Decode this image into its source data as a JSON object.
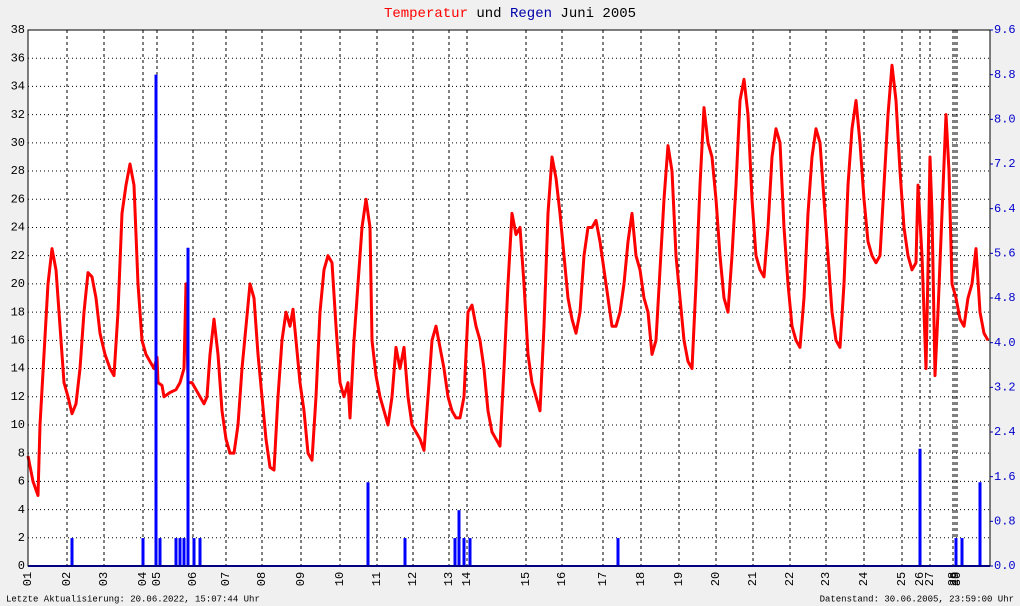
{
  "chart_data": {
    "type": "line",
    "title_connector": "und",
    "title_suffix": "Juni 2005",
    "footer_left": "Letzte Aktualisierung: 20.06.2022, 15:07:44 Uhr",
    "footer_right": "Datenstand: 30.06.2005, 23:59:00 Uhr",
    "xlim": [
      28,
      990
    ],
    "xticks": [
      {
        "value": 28,
        "label": "01"
      },
      {
        "value": 67,
        "label": "02"
      },
      {
        "value": 104,
        "label": "03"
      },
      {
        "value": 143,
        "label": "04"
      },
      {
        "value": 157,
        "label": "05"
      },
      {
        "value": 193,
        "label": "06"
      },
      {
        "value": 226,
        "label": "07"
      },
      {
        "value": 262,
        "label": "08"
      },
      {
        "value": 301,
        "label": "09"
      },
      {
        "value": 340,
        "label": "10"
      },
      {
        "value": 377,
        "label": "11"
      },
      {
        "value": 413,
        "label": "12"
      },
      {
        "value": 449,
        "label": "13"
      },
      {
        "value": 467,
        "label": "14"
      },
      {
        "value": 526,
        "label": "15"
      },
      {
        "value": 562,
        "label": "16"
      },
      {
        "value": 603,
        "label": "17"
      },
      {
        "value": 641,
        "label": "18"
      },
      {
        "value": 679,
        "label": "19"
      },
      {
        "value": 716,
        "label": "20"
      },
      {
        "value": 753,
        "label": "21"
      },
      {
        "value": 790,
        "label": "22"
      },
      {
        "value": 826,
        "label": "23"
      },
      {
        "value": 864,
        "label": "24"
      },
      {
        "value": 902,
        "label": "25"
      },
      {
        "value": 920,
        "label": "26"
      },
      {
        "value": 930,
        "label": "27"
      },
      {
        "value": 953,
        "label": "28"
      },
      {
        "value": 955,
        "label": "29"
      },
      {
        "value": 957,
        "label": "30"
      }
    ],
    "ylim": [
      0,
      38
    ],
    "yticks": [
      0,
      2,
      4,
      6,
      8,
      10,
      12,
      14,
      16,
      18,
      20,
      22,
      24,
      26,
      28,
      30,
      32,
      34,
      36,
      38
    ],
    "y2lim": [
      0,
      9.6
    ],
    "y2ticks": [
      {
        "value": 0,
        "label": "0.0"
      },
      0.8,
      1.6,
      2.4,
      3.2,
      {
        "value": 4,
        "label": "4.0"
      },
      4.8,
      5.6,
      6.4,
      7.2,
      {
        "value": 8,
        "label": "8.0"
      },
      8.8,
      9.6
    ],
    "grid": true,
    "series": [
      {
        "name": "Temperatur",
        "color": "#ff0000",
        "x": [
          28,
          33,
          38,
          40,
          44,
          48,
          52,
          56,
          60,
          64,
          68,
          72,
          76,
          80,
          84,
          88,
          92,
          96,
          100,
          105,
          110,
          114,
          118,
          122,
          126,
          130,
          134,
          138,
          142,
          146,
          150,
          154,
          157,
          158,
          162,
          164,
          170,
          176,
          180,
          184,
          186,
          188,
          192,
          196,
          200,
          204,
          207,
          210,
          214,
          218,
          222,
          226,
          230,
          234,
          238,
          242,
          246,
          250,
          254,
          258,
          262,
          266,
          270,
          274,
          278,
          282,
          286,
          290,
          293,
          296,
          300,
          304,
          308,
          312,
          316,
          320,
          324,
          328,
          332,
          336,
          340,
          344,
          348,
          350,
          354,
          358,
          362,
          366,
          370,
          372,
          376,
          380,
          384,
          388,
          392,
          396,
          400,
          404,
          408,
          412,
          416,
          420,
          424,
          428,
          432,
          436,
          440,
          444,
          448,
          452,
          456,
          460,
          464,
          468,
          472,
          476,
          480,
          484,
          488,
          492,
          496,
          500,
          504,
          508,
          512,
          516,
          520,
          524,
          528,
          532,
          536,
          540,
          544,
          548,
          552,
          556,
          560,
          564,
          568,
          572,
          576,
          580,
          584,
          588,
          592,
          596,
          600,
          604,
          608,
          612,
          616,
          620,
          624,
          628,
          632,
          636,
          640,
          644,
          648,
          652,
          656,
          660,
          664,
          668,
          672,
          676,
          680,
          684,
          688,
          692,
          696,
          700,
          704,
          708,
          712,
          716,
          720,
          724,
          728,
          732,
          736,
          740,
          744,
          748,
          752,
          756,
          760,
          764,
          768,
          772,
          776,
          780,
          784,
          788,
          792,
          796,
          800,
          804,
          808,
          812,
          816,
          820,
          824,
          828,
          832,
          836,
          840,
          844,
          848,
          852,
          856,
          860,
          864,
          868,
          872,
          876,
          880,
          884,
          888,
          892,
          896,
          900,
          904,
          908,
          912,
          916,
          918,
          922,
          926,
          928,
          930,
          932,
          935,
          938,
          942,
          946,
          949,
          952,
          956,
          960,
          964,
          968,
          972,
          976,
          980,
          984,
          988
        ],
        "values": [
          7.8,
          6,
          5,
          10,
          15,
          20,
          22.5,
          21,
          17,
          13,
          12,
          10.8,
          11.5,
          14,
          18,
          20.8,
          20.5,
          19,
          16.5,
          15,
          14,
          13.5,
          18,
          25,
          27,
          28.5,
          27,
          20,
          16,
          15,
          14.5,
          14,
          14.8,
          13,
          12.8,
          12,
          12.3,
          12.5,
          13,
          14,
          20,
          13,
          13,
          12.5,
          12,
          11.5,
          12,
          15,
          17.5,
          15,
          11,
          9,
          8,
          8,
          10,
          14,
          17,
          20,
          19,
          15,
          12,
          9,
          7,
          6.8,
          12,
          16,
          18,
          17,
          18.2,
          16,
          13,
          11,
          8,
          7.5,
          12,
          18,
          21,
          22,
          21.5,
          17,
          13,
          12,
          13,
          10.5,
          16,
          20,
          24,
          26,
          24,
          16,
          13.5,
          12,
          11,
          10,
          12,
          15.5,
          14,
          15.5,
          12,
          10,
          9.5,
          9,
          8.2,
          12,
          16,
          17,
          15.5,
          14,
          12,
          11,
          10.5,
          10.5,
          12,
          18,
          18.5,
          17,
          16,
          14,
          11,
          9.5,
          9,
          8.5,
          14,
          20,
          25,
          23.5,
          24,
          20,
          15,
          13,
          12,
          11,
          17,
          25,
          29,
          27.5,
          25,
          22,
          19,
          17.5,
          16.5,
          18,
          22,
          24,
          24,
          24.5,
          23,
          21,
          19,
          17,
          17,
          18,
          20,
          23,
          25,
          22,
          21,
          19,
          18,
          15,
          16,
          21,
          26,
          29.8,
          28,
          22,
          19,
          16,
          14.5,
          14,
          20,
          27,
          32.5,
          30,
          29,
          26,
          22,
          19,
          18,
          22,
          27,
          33,
          34.5,
          32,
          26,
          22,
          21,
          20.5,
          24,
          29,
          31,
          30,
          24,
          20,
          17,
          16,
          15.5,
          19,
          25,
          29,
          31,
          30,
          26,
          22,
          18,
          16,
          15.5,
          20,
          27,
          31,
          33,
          30,
          26,
          23,
          22,
          21.5,
          22,
          27,
          32,
          35.5,
          33,
          28,
          24,
          22,
          21,
          21.5,
          27,
          22,
          14,
          21,
          29,
          25,
          13.5,
          18,
          25,
          32,
          28,
          20,
          19,
          17.5,
          17,
          19,
          20,
          22.5,
          18,
          16.5,
          16
        ]
      },
      {
        "name": "Regen",
        "color": "#0000ff",
        "axis": "y2",
        "type": "bar",
        "x": [
          72,
          143,
          156,
          160,
          176,
          180,
          184,
          188,
          194,
          200,
          368,
          405,
          455,
          459,
          464,
          470,
          618,
          920,
          956,
          962,
          980
        ],
        "values": [
          0.5,
          0.5,
          8.8,
          0.5,
          0.5,
          0.5,
          0.5,
          5.7,
          0.5,
          0.5,
          1.5,
          0.5,
          0.5,
          1.0,
          0.5,
          0.5,
          0.5,
          2.1,
          0.5,
          0.5,
          1.5
        ]
      }
    ]
  }
}
